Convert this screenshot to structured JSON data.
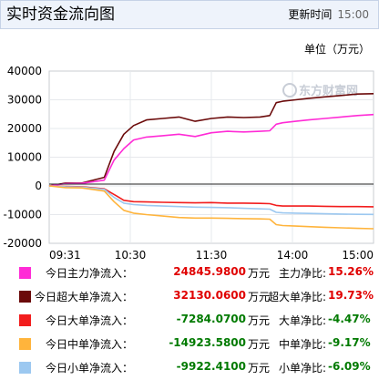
{
  "header": {
    "title": "实时资金流向图",
    "update_label": "更新时间",
    "update_time": "15:00"
  },
  "unit_label": "单位（万元）",
  "watermark": "东方财富网",
  "colors": {
    "main": "#ff2bd6",
    "super": "#6b0a0a",
    "large": "#f21d1d",
    "medium": "#ffb43c",
    "small": "#9cc8f0"
  },
  "legend": [
    {
      "label": "今日主力净流入：",
      "value": "24845.9800",
      "unit": "万元",
      "ratio_label": "主力净比:",
      "ratio": "15.26%",
      "color": "#ff2bd6",
      "negative": false
    },
    {
      "label": "今日超大单净流入：",
      "value": "32130.0600",
      "unit": "万元",
      "ratio_label": "超大单净比:",
      "ratio": "19.73%",
      "color": "#6b0a0a",
      "negative": false
    },
    {
      "label": "今日大单净流入：",
      "value": "-7284.0700",
      "unit": "万元",
      "ratio_label": "大单净比:",
      "ratio": "-4.47%",
      "color": "#f21d1d",
      "negative": true
    },
    {
      "label": "今日中单净流入：",
      "value": "-14923.5800",
      "unit": "万元",
      "ratio_label": "中单净比:",
      "ratio": "-9.17%",
      "color": "#ffb43c",
      "negative": true
    },
    {
      "label": "今日小单净流入：",
      "value": "-9922.4100",
      "unit": "万元",
      "ratio_label": "小单净比:",
      "ratio": "-6.09%",
      "color": "#9cc8f0",
      "negative": true
    }
  ],
  "chart_data": {
    "type": "line",
    "x_tick_labels": [
      "09:31",
      "10:30",
      "11:30",
      "14:00",
      "15:00"
    ],
    "y_tick_labels": [
      "40000",
      "30000",
      "20000",
      "10000",
      "0",
      "-10000",
      "-20000"
    ],
    "ylim": [
      -20000,
      40000
    ],
    "grid": true,
    "x": [
      0,
      0.05,
      0.1,
      0.17,
      0.2,
      0.23,
      0.26,
      0.3,
      0.35,
      0.4,
      0.45,
      0.5,
      0.55,
      0.6,
      0.65,
      0.68,
      0.7,
      0.72,
      0.76,
      0.8,
      0.85,
      0.9,
      0.95,
      1
    ],
    "series": [
      {
        "key": "super",
        "color": "#6b0a0a",
        "values": [
          0,
          1000,
          1000,
          3000,
          12000,
          18000,
          21000,
          23000,
          23500,
          24000,
          22500,
          23500,
          24000,
          23800,
          24000,
          24500,
          29000,
          29500,
          30000,
          30500,
          31000,
          31500,
          32000,
          32130
        ]
      },
      {
        "key": "main",
        "color": "#ff2bd6",
        "values": [
          0,
          800,
          900,
          2000,
          9000,
          13000,
          16000,
          17000,
          17500,
          18000,
          17200,
          18500,
          19000,
          18800,
          19000,
          19200,
          21500,
          22000,
          22500,
          23000,
          23500,
          24000,
          24500,
          24846
        ]
      },
      {
        "key": "large",
        "color": "#f21d1d",
        "values": [
          0,
          -200,
          -300,
          -1000,
          -3000,
          -5000,
          -5500,
          -5600,
          -5700,
          -5800,
          -5900,
          -5800,
          -6000,
          -6000,
          -6100,
          -6200,
          -6800,
          -7000,
          -7000,
          -7000,
          -7100,
          -7200,
          -7200,
          -7284
        ]
      },
      {
        "key": "small",
        "color": "#9cc8f0",
        "values": [
          0,
          -300,
          -400,
          -1200,
          -4000,
          -6000,
          -6500,
          -6800,
          -7000,
          -7200,
          -7400,
          -7500,
          -7600,
          -7800,
          -8000,
          -8100,
          -9200,
          -9400,
          -9500,
          -9600,
          -9700,
          -9800,
          -9900,
          -9922
        ]
      },
      {
        "key": "medium",
        "color": "#ffb43c",
        "values": [
          0,
          -600,
          -700,
          -1800,
          -5500,
          -8500,
          -9500,
          -10000,
          -10500,
          -11000,
          -11200,
          -11200,
          -11300,
          -11400,
          -11500,
          -11600,
          -13500,
          -13800,
          -14000,
          -14200,
          -14400,
          -14600,
          -14800,
          -14924
        ]
      }
    ]
  }
}
